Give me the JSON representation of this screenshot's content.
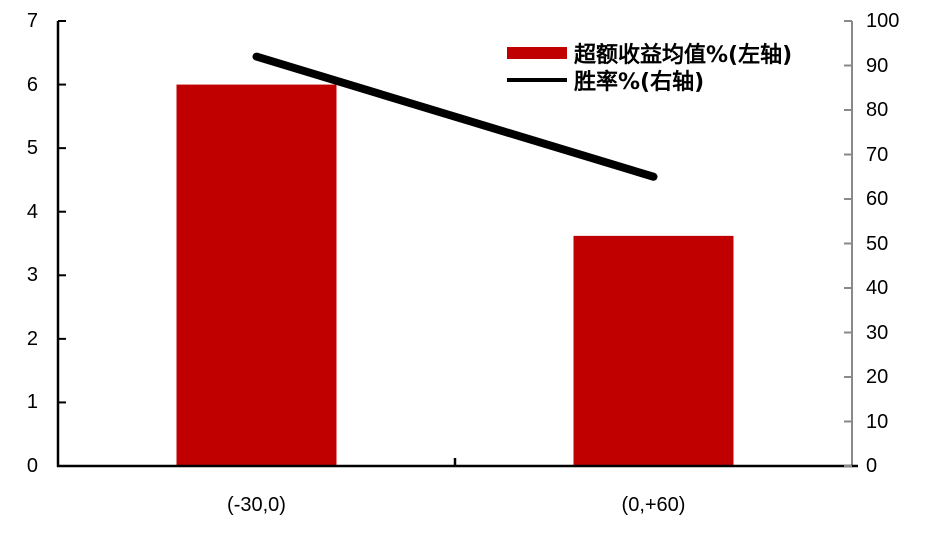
{
  "chart_data": {
    "type": "bar",
    "combo": "bar+line dual axis",
    "title": "",
    "categories": [
      "(-30,0)",
      "(0,+60)"
    ],
    "series": [
      {
        "name": "超额收益均值%(左轴)",
        "chart_type": "bar",
        "axis": "left",
        "color": "#c00000",
        "values": [
          6.0,
          3.62
        ]
      },
      {
        "name": "胜率%(右轴)",
        "chart_type": "line",
        "axis": "right",
        "color": "#000000",
        "values": [
          92,
          65
        ]
      }
    ],
    "left_axis": {
      "min": 0,
      "max": 7,
      "step": 1,
      "tick_labels": [
        "0",
        "1",
        "2",
        "3",
        "4",
        "5",
        "6",
        "7"
      ]
    },
    "right_axis": {
      "min": 0,
      "max": 100,
      "step": 10,
      "tick_labels": [
        "0",
        "10",
        "20",
        "30",
        "40",
        "50",
        "60",
        "70",
        "80",
        "90",
        "100"
      ]
    },
    "legend_position": "top-right",
    "grid": false
  },
  "styles": {
    "background": "#ffffff",
    "bar_color": "#c00000",
    "line_color": "#000000",
    "left_axis_color": "#000000",
    "bottom_axis_color": "#000000",
    "right_axis_color": "#898989",
    "text_color": "#000000"
  }
}
